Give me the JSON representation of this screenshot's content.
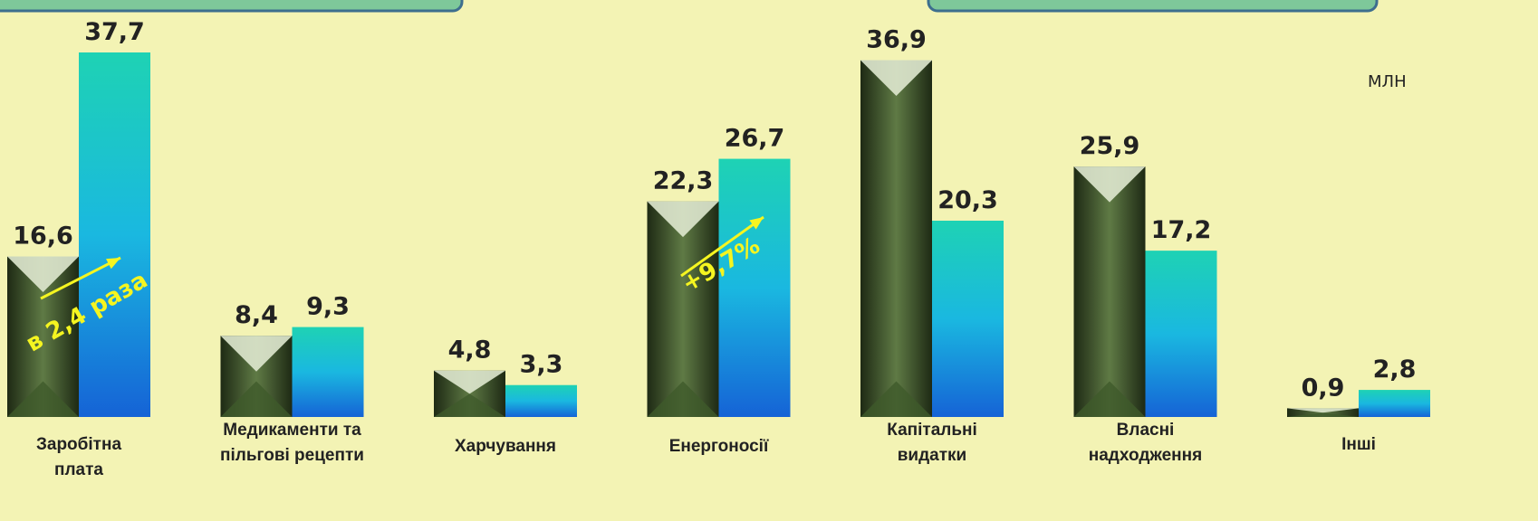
{
  "chart_data": {
    "type": "bar",
    "categories": [
      "Заробітна плата",
      "Медикаменти та пільгові рецепти",
      "Харчування",
      "Енергоносії",
      "Капітальні видатки",
      "Власні надходження",
      "Інші"
    ],
    "series": [
      {
        "color": "#5f7a45",
        "values": [
          16.6,
          8.4,
          4.8,
          22.3,
          36.9,
          25.9,
          0.9
        ],
        "value_labels": [
          "16,6",
          "8,4",
          "4,8",
          "22,3",
          "36,9",
          "25,9",
          "0,9"
        ]
      },
      {
        "color": "#1ed2b4",
        "values": [
          37.7,
          9.3,
          3.3,
          26.7,
          20.3,
          17.2,
          2.8
        ],
        "value_labels": [
          "37,7",
          "9,3",
          "3,3",
          "26,7",
          "20,3",
          "17,2",
          "2,8"
        ]
      }
    ],
    "ylim": [
      0,
      40
    ],
    "annotations": [
      "в 2,4 раза",
      "+9,7%"
    ],
    "unit": "МЛН"
  }
}
